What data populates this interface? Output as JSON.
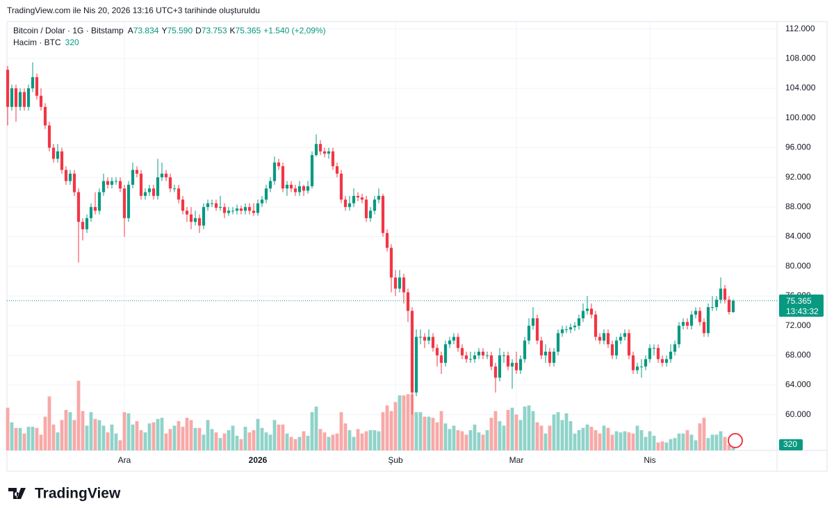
{
  "header": "TradingView.com ile Nis 20, 2026 13:16 UTC+3 tarihinde oluşturuldu",
  "brand": "TradingView",
  "legend": {
    "symbol": "Bitcoin / Dolar · 1G · Bitstamp",
    "fields": [
      {
        "key": "A",
        "value": "73.834"
      },
      {
        "key": "Y",
        "value": "75.590"
      },
      {
        "key": "D",
        "value": "73.753"
      },
      {
        "key": "K",
        "value": "75.365"
      }
    ],
    "change": "+1.540 (+2,09%)",
    "volume_title": "Hacim · BTC"
  },
  "last_price_label": "75.365",
  "countdown": "13:43:32",
  "chart_data": {
    "type": "candlestick",
    "up_color": "#089981",
    "down_color": "#f23645",
    "volume_up_color": "#8fd3c9",
    "volume_down_color": "#f7a9a7",
    "grid": true,
    "xlim": [
      -0.5,
      184.5
    ],
    "xticks": [
      {
        "value": 28,
        "label": "Ara"
      },
      {
        "value": 60,
        "label": "2026"
      },
      {
        "value": 93,
        "label": "Şub"
      },
      {
        "value": 122,
        "label": "Mar"
      },
      {
        "value": 154,
        "label": "Nis"
      }
    ],
    "ylim": [
      55200,
      113000
    ],
    "yticks": [
      {
        "value": 60000,
        "label": "60.000"
      },
      {
        "value": 64000,
        "label": "64.000"
      },
      {
        "value": 68000,
        "label": "68.000"
      },
      {
        "value": 72000,
        "label": "72.000"
      },
      {
        "value": 76000,
        "label": "76.000"
      },
      {
        "value": 80000,
        "label": "80.000"
      },
      {
        "value": 84000,
        "label": "84.000"
      },
      {
        "value": 88000,
        "label": "88.000"
      },
      {
        "value": 92000,
        "label": "92.000"
      },
      {
        "value": 96000,
        "label": "96.000"
      },
      {
        "value": 100000,
        "label": "100.000"
      },
      {
        "value": 104000,
        "label": "104.000"
      },
      {
        "value": 108000,
        "label": "108.000"
      },
      {
        "value": 112000,
        "label": "112.000"
      }
    ],
    "volume_ylim": [
      0,
      6500
    ],
    "candles": [
      [
        106500,
        107000,
        99000,
        101500
      ],
      [
        101500,
        104500,
        101000,
        104000
      ],
      [
        104000,
        104500,
        99500,
        101500
      ],
      [
        101500,
        104000,
        101000,
        103500
      ],
      [
        103500,
        104000,
        101000,
        101500
      ],
      [
        101500,
        104500,
        101000,
        104000
      ],
      [
        104000,
        107500,
        103500,
        105500
      ],
      [
        105500,
        106000,
        102500,
        103000
      ],
      [
        103000,
        104000,
        101000,
        101500
      ],
      [
        101500,
        102000,
        98500,
        99000
      ],
      [
        99000,
        99500,
        95500,
        96000
      ],
      [
        96000,
        96500,
        94000,
        94500
      ],
      [
        94500,
        96500,
        94000,
        95500
      ],
      [
        95500,
        96000,
        92500,
        93000
      ],
      [
        93000,
        93500,
        91000,
        91500
      ],
      [
        91500,
        93000,
        91000,
        92500
      ],
      [
        92500,
        93000,
        89500,
        90000
      ],
      [
        90000,
        90500,
        80500,
        86000
      ],
      [
        86000,
        86500,
        83500,
        85000
      ],
      [
        85000,
        87000,
        84500,
        86500
      ],
      [
        86500,
        88500,
        86000,
        88000
      ],
      [
        88000,
        90000,
        87000,
        87500
      ],
      [
        87500,
        90500,
        87000,
        90000
      ],
      [
        90000,
        92500,
        89500,
        91500
      ],
      [
        91500,
        92000,
        90500,
        91000
      ],
      [
        91000,
        92000,
        90500,
        91500
      ],
      [
        91500,
        92000,
        91000,
        91500
      ],
      [
        91500,
        92000,
        90000,
        90500
      ],
      [
        90500,
        91000,
        84000,
        86500
      ],
      [
        86500,
        91500,
        86000,
        91000
      ],
      [
        91000,
        94000,
        90500,
        93000
      ],
      [
        93000,
        93500,
        92000,
        92500
      ],
      [
        92500,
        93000,
        89000,
        89500
      ],
      [
        89500,
        90500,
        89000,
        90000
      ],
      [
        90000,
        91000,
        89500,
        90500
      ],
      [
        90500,
        91000,
        89000,
        89500
      ],
      [
        89500,
        94500,
        89000,
        92000
      ],
      [
        92000,
        94000,
        91500,
        92500
      ],
      [
        92500,
        93000,
        91500,
        92000
      ],
      [
        92000,
        92500,
        90000,
        90500
      ],
      [
        90500,
        91000,
        90000,
        90500
      ],
      [
        90500,
        91000,
        88500,
        89000
      ],
      [
        89000,
        89500,
        87000,
        87500
      ],
      [
        87500,
        88000,
        86000,
        87000
      ],
      [
        87000,
        88000,
        85000,
        86000
      ],
      [
        86000,
        87500,
        85500,
        86500
      ],
      [
        86500,
        87000,
        84500,
        85500
      ],
      [
        85500,
        88500,
        85000,
        88000
      ],
      [
        88000,
        89000,
        87500,
        88500
      ],
      [
        88500,
        89000,
        88000,
        88500
      ],
      [
        88500,
        89000,
        87500,
        87900
      ],
      [
        87900,
        89500,
        87500,
        88000
      ],
      [
        88000,
        88500,
        86500,
        87200
      ],
      [
        87200,
        88000,
        86800,
        87500
      ],
      [
        87500,
        88000,
        87000,
        87500
      ],
      [
        87500,
        88300,
        87000,
        87800
      ],
      [
        87800,
        88200,
        87000,
        87500
      ],
      [
        87500,
        88500,
        87000,
        88000
      ],
      [
        88000,
        88500,
        87000,
        87500
      ],
      [
        87500,
        88500,
        86800,
        87200
      ],
      [
        87200,
        89000,
        86800,
        88500
      ],
      [
        88500,
        89500,
        88000,
        89000
      ],
      [
        89000,
        91000,
        88500,
        90500
      ],
      [
        90500,
        92000,
        90000,
        91500
      ],
      [
        91500,
        94800,
        91000,
        94000
      ],
      [
        94000,
        94500,
        93000,
        93500
      ],
      [
        93500,
        94000,
        90000,
        90500
      ],
      [
        90500,
        91500,
        89500,
        91000
      ],
      [
        91000,
        91500,
        90000,
        90500
      ],
      [
        90500,
        91000,
        89500,
        90000
      ],
      [
        90000,
        91500,
        89500,
        90800
      ],
      [
        90800,
        91000,
        89500,
        90200
      ],
      [
        90200,
        91500,
        89800,
        90800
      ],
      [
        90800,
        95500,
        90500,
        95000
      ],
      [
        95000,
        97800,
        94800,
        96500
      ],
      [
        96500,
        97000,
        95000,
        95500
      ],
      [
        95500,
        96000,
        94700,
        95200
      ],
      [
        95200,
        96000,
        94500,
        95500
      ],
      [
        95500,
        96000,
        93000,
        93500
      ],
      [
        93500,
        94000,
        92000,
        92500
      ],
      [
        92500,
        93000,
        88500,
        89000
      ],
      [
        89000,
        89500,
        87500,
        88000
      ],
      [
        88000,
        89500,
        87500,
        88500
      ],
      [
        88500,
        90500,
        88000,
        89500
      ],
      [
        89500,
        90000,
        88800,
        89300
      ],
      [
        89300,
        89800,
        88500,
        89000
      ],
      [
        89000,
        89500,
        86000,
        86500
      ],
      [
        86500,
        88000,
        86000,
        87500
      ],
      [
        87500,
        89500,
        87000,
        89000
      ],
      [
        89000,
        90500,
        88500,
        89500
      ],
      [
        89500,
        89800,
        84000,
        84500
      ],
      [
        84500,
        85000,
        82000,
        82500
      ],
      [
        82500,
        83000,
        76500,
        78500
      ],
      [
        78500,
        79500,
        76000,
        77000
      ],
      [
        77000,
        79500,
        76500,
        78500
      ],
      [
        78500,
        79000,
        75000,
        76500
      ],
      [
        76500,
        77000,
        72500,
        74000
      ],
      [
        74000,
        74500,
        60000,
        63000
      ],
      [
        63000,
        71500,
        62500,
        70500
      ],
      [
        70500,
        71500,
        69500,
        70500
      ],
      [
        70500,
        71000,
        69000,
        70000
      ],
      [
        70000,
        71500,
        69500,
        70500
      ],
      [
        70500,
        71000,
        68500,
        69000
      ],
      [
        69000,
        69500,
        66500,
        68000
      ],
      [
        68000,
        68500,
        65500,
        67000
      ],
      [
        67000,
        70000,
        66500,
        69500
      ],
      [
        69500,
        70500,
        69000,
        70000
      ],
      [
        70000,
        71000,
        69500,
        70500
      ],
      [
        70500,
        71000,
        68500,
        69000
      ],
      [
        69000,
        69500,
        67500,
        68000
      ],
      [
        68000,
        68500,
        67000,
        67500
      ],
      [
        67500,
        68500,
        67000,
        67500
      ],
      [
        67500,
        68500,
        67000,
        68000
      ],
      [
        68000,
        69000,
        67500,
        68500
      ],
      [
        68500,
        69000,
        67500,
        68000
      ],
      [
        68000,
        68500,
        67500,
        68000
      ],
      [
        68000,
        68500,
        66000,
        66500
      ],
      [
        66500,
        67000,
        63000,
        65000
      ],
      [
        65000,
        69000,
        64500,
        68000
      ],
      [
        68000,
        68500,
        67000,
        68000
      ],
      [
        68000,
        68500,
        66000,
        66500
      ],
      [
        66500,
        67500,
        63500,
        67000
      ],
      [
        67000,
        68500,
        65500,
        66000
      ],
      [
        66000,
        68000,
        65500,
        67500
      ],
      [
        67500,
        70500,
        67000,
        70000
      ],
      [
        70000,
        73000,
        69500,
        72000
      ],
      [
        72000,
        74500,
        71500,
        73000
      ],
      [
        73000,
        73500,
        69500,
        70000
      ],
      [
        70000,
        70500,
        67500,
        68000
      ],
      [
        68000,
        69500,
        67000,
        68500
      ],
      [
        68500,
        69000,
        66500,
        67000
      ],
      [
        67000,
        69000,
        66500,
        68500
      ],
      [
        68500,
        71500,
        68000,
        71000
      ],
      [
        71000,
        72000,
        70500,
        71500
      ],
      [
        71500,
        72000,
        71000,
        71500
      ],
      [
        71500,
        72300,
        71000,
        71800
      ],
      [
        71800,
        72500,
        71300,
        72000
      ],
      [
        72000,
        73500,
        71500,
        73000
      ],
      [
        73000,
        75000,
        72500,
        74000
      ],
      [
        74000,
        76000,
        73500,
        74300
      ],
      [
        74300,
        75000,
        73000,
        73500
      ],
      [
        73500,
        74000,
        70000,
        70500
      ],
      [
        70500,
        71000,
        69500,
        70000
      ],
      [
        70000,
        71500,
        69500,
        71000
      ],
      [
        71000,
        71500,
        69000,
        69500
      ],
      [
        69500,
        70000,
        67500,
        68000
      ],
      [
        68000,
        70500,
        67500,
        70000
      ],
      [
        70000,
        71000,
        69500,
        70500
      ],
      [
        70500,
        71500,
        70000,
        71000
      ],
      [
        71000,
        71500,
        67500,
        68000
      ],
      [
        68000,
        68500,
        65500,
        66000
      ],
      [
        66000,
        67000,
        65500,
        66500
      ],
      [
        66500,
        67500,
        65000,
        66500
      ],
      [
        66500,
        68000,
        66000,
        67500
      ],
      [
        67500,
        69500,
        67000,
        69000
      ],
      [
        69000,
        69500,
        68000,
        69000
      ],
      [
        69000,
        69500,
        67000,
        67500
      ],
      [
        67500,
        68000,
        66500,
        67000
      ],
      [
        67000,
        68000,
        66500,
        67500
      ],
      [
        67500,
        69500,
        67000,
        68500
      ],
      [
        68500,
        70000,
        68000,
        69500
      ],
      [
        69500,
        72500,
        69000,
        72000
      ],
      [
        72000,
        73000,
        71500,
        72500
      ],
      [
        72500,
        73000,
        71500,
        72000
      ],
      [
        72000,
        74000,
        71500,
        73500
      ],
      [
        73500,
        74500,
        73000,
        74000
      ],
      [
        74000,
        74500,
        72000,
        72500
      ],
      [
        72500,
        73000,
        70500,
        71000
      ],
      [
        71000,
        75000,
        70500,
        74500
      ],
      [
        74500,
        76000,
        74000,
        74500
      ],
      [
        74500,
        76000,
        74000,
        75500
      ],
      [
        75500,
        78500,
        75000,
        77000
      ],
      [
        77000,
        77500,
        75000,
        75500
      ],
      [
        75500,
        76000,
        73500,
        73834
      ],
      [
        73834,
        75590,
        73753,
        75365
      ]
    ],
    "volume": [
      3800,
      2500,
      2000,
      2000,
      1500,
      2100,
      2100,
      2000,
      1400,
      3000,
      4800,
      2300,
      1600,
      2700,
      3600,
      3400,
      2700,
      6200,
      3500,
      2200,
      3400,
      2800,
      2700,
      2200,
      1600,
      2300,
      1500,
      900,
      3400,
      3300,
      2300,
      2600,
      1800,
      1600,
      2400,
      2500,
      2800,
      2900,
      1500,
      1900,
      2200,
      2600,
      2100,
      2900,
      2700,
      2000,
      2000,
      1400,
      2700,
      1900,
      1600,
      1100,
      1500,
      1800,
      2200,
      1300,
      1000,
      2100,
      1600,
      1800,
      2800,
      2000,
      1600,
      1400,
      2700,
      2300,
      2300,
      1500,
      1200,
      1000,
      1200,
      1700,
      1300,
      3400,
      3900,
      1900,
      1600,
      1200,
      1400,
      1500,
      3400,
      2400,
      1800,
      1200,
      1900,
      1500,
      1700,
      1800,
      1800,
      1700,
      3400,
      4000,
      3500,
      4300,
      4900,
      4900,
      5000,
      5000,
      3400,
      3400,
      3000,
      3000,
      2900,
      2500,
      3500,
      2400,
      1900,
      2200,
      1800,
      1700,
      1400,
      1800,
      2300,
      1600,
      1400,
      1800,
      2900,
      3500,
      2600,
      2200,
      3600,
      3800,
      3200,
      2700,
      3900,
      4000,
      3500,
      2500,
      2200,
      1500,
      2200,
      3200,
      3400,
      2700,
      3300,
      2600,
      1500,
      1800,
      2000,
      2300,
      2100,
      1800,
      1500,
      2200,
      2000,
      1400,
      1700,
      1600,
      1700,
      1600,
      1500,
      2200,
      1800,
      1200,
      1700,
      1300,
      700,
      800,
      700,
      1000,
      1100,
      1500,
      1500,
      1800,
      1400,
      900,
      2400,
      2900,
      1100,
      1400,
      1400,
      1700,
      1200,
      500,
      320
    ]
  }
}
